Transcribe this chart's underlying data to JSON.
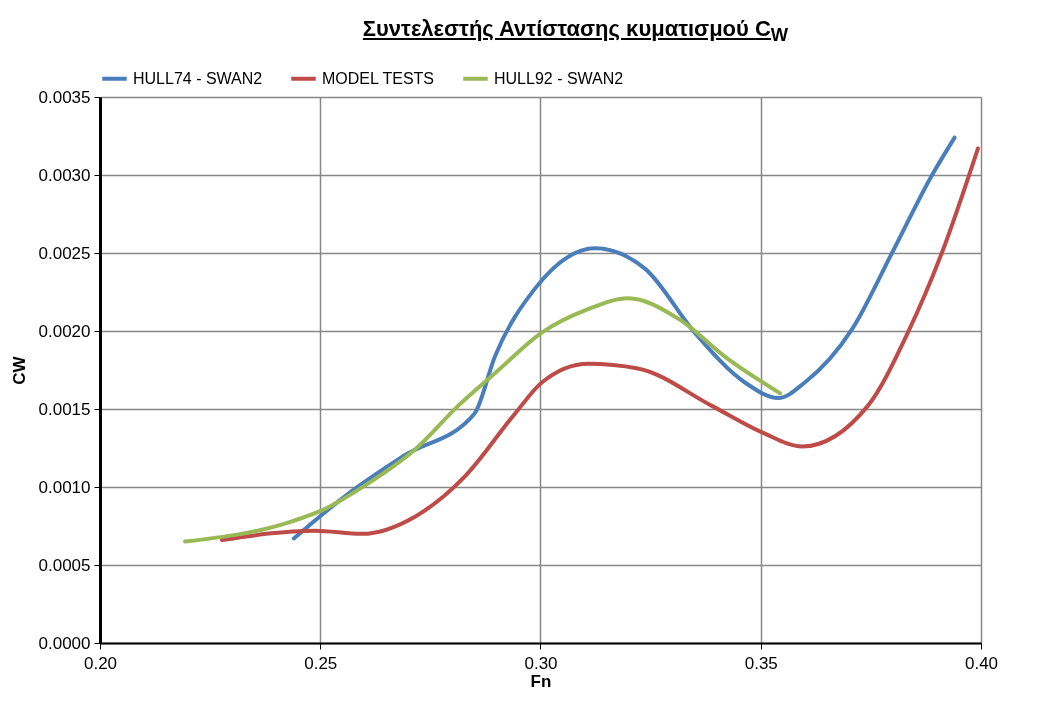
{
  "chart_data": {
    "type": "line",
    "title": "Συντελεστής  Αντίστασης κυματισμού C$_{W}$",
    "xlabel": "Fn",
    "ylabel": "CW",
    "xlim": [
      0.2,
      0.4
    ],
    "ylim": [
      0,
      0.0035
    ],
    "xticks": [
      {
        "value": 0.2,
        "label": "0.20"
      },
      {
        "value": 0.25,
        "label": "0.25"
      },
      {
        "value": 0.3,
        "label": "0.30"
      },
      {
        "value": 0.35,
        "label": "0.35"
      },
      {
        "value": 0.4,
        "label": "0.40"
      }
    ],
    "yticks": [
      {
        "value": 0,
        "label": "0.0000"
      },
      0.0005,
      {
        "value": 0.001,
        "label": "0.0010"
      },
      0.0015,
      {
        "value": 0.002,
        "label": "0.0020"
      },
      0.0025,
      {
        "value": 0.003,
        "label": "0.0030"
      },
      0.0035
    ],
    "grid": true,
    "legend": "top",
    "marker": "none",
    "line_style": "solid",
    "series": [
      {
        "name": "HULL74 - SWAN2",
        "color": "#4a7ebb",
        "x": [
          0.244,
          0.2556,
          0.269,
          0.285,
          0.2897,
          0.2987,
          0.3124,
          0.3237,
          0.335,
          0.3464,
          0.354,
          0.36,
          0.3707,
          0.3798,
          0.3889,
          0.394
        ],
        "values": [
          0.00067,
          0.00094,
          0.0012,
          0.00147,
          0.00184,
          0.00227,
          0.00253,
          0.0024,
          0.00199,
          0.00167,
          0.00157,
          0.00167,
          0.00201,
          0.0025,
          0.003,
          0.00324
        ]
      },
      {
        "name": "MODEL TESTS",
        "color": "#be4b48",
        "x": [
          0.2277,
          0.2488,
          0.2595,
          0.2715,
          0.2829,
          0.2942,
          0.3003,
          0.3108,
          0.3221,
          0.3389,
          0.3503,
          0.3594,
          0.3743,
          0.3834,
          0.3911,
          0.3993
        ],
        "values": [
          0.00066,
          0.00072,
          0.0007,
          0.00081,
          0.00107,
          0.00147,
          0.00167,
          0.00179,
          0.00176,
          0.00152,
          0.00135,
          0.00126,
          0.00152,
          0.00199,
          0.0025,
          0.00317
        ]
      },
      {
        "name": "HULL92 - SWAN2",
        "color": "#98b954",
        "x": [
          0.2193,
          0.2436,
          0.2511,
          0.2602,
          0.2715,
          0.2813,
          0.2897,
          0.3003,
          0.3108,
          0.3199,
          0.3312,
          0.3426,
          0.3544
        ],
        "values": [
          0.00065,
          0.00078,
          0.00086,
          0.00101,
          0.00124,
          0.00152,
          0.00173,
          0.00199,
          0.00214,
          0.00221,
          0.00208,
          0.00182,
          0.0016
        ]
      }
    ]
  }
}
